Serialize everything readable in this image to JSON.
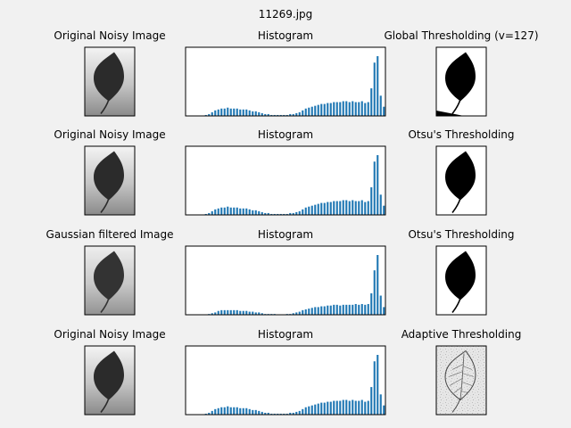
{
  "window": {
    "title": "11269.jpg"
  },
  "panels": [
    {
      "row": 0,
      "left_title": "Original Noisy Image",
      "middle_title": "Histogram",
      "right_title": "Global Thresholding (v=127)",
      "right_kind": "global"
    },
    {
      "row": 1,
      "left_title": "Original Noisy Image",
      "middle_title": "Histogram",
      "right_title": "Otsu's Thresholding",
      "right_kind": "otsu"
    },
    {
      "row": 2,
      "left_title": "Gaussian filtered Image",
      "middle_title": "Histogram",
      "right_title": "Otsu's Thresholding",
      "right_kind": "otsu"
    },
    {
      "row": 3,
      "left_title": "Original Noisy Image",
      "middle_title": "Histogram",
      "right_title": "Adaptive Thresholding",
      "right_kind": "adaptive"
    }
  ],
  "colors": {
    "figure_bg": "#f1f1f1",
    "axes_bg": "#ffffff",
    "bar": "#1f77b4",
    "leaf": "#2b2b2b",
    "binary_fg": "#000000"
  },
  "chart_data": [
    {
      "type": "bar",
      "title": "Histogram",
      "x": [
        26,
        30,
        34,
        38,
        42,
        46,
        50,
        54,
        58,
        62,
        66,
        70,
        74,
        78,
        82,
        86,
        90,
        94,
        98,
        102,
        106,
        110,
        114,
        118,
        122,
        126,
        130,
        134,
        138,
        142,
        146,
        150,
        154,
        158,
        162,
        166,
        170,
        174,
        178,
        182,
        186,
        190,
        194,
        198,
        202,
        206,
        210,
        214,
        218,
        222,
        226,
        230,
        234,
        238,
        242,
        246,
        250,
        254
      ],
      "values": [
        1,
        2,
        4,
        6,
        7,
        8,
        8,
        9,
        8,
        8,
        8,
        7,
        7,
        7,
        6,
        5,
        5,
        4,
        3,
        2,
        2,
        1,
        1,
        1,
        1,
        1,
        1,
        2,
        2,
        3,
        4,
        6,
        8,
        9,
        10,
        11,
        12,
        13,
        13,
        14,
        14,
        15,
        15,
        15,
        16,
        16,
        15,
        16,
        15,
        15,
        16,
        14,
        15,
        30,
        58,
        65,
        22,
        10
      ],
      "xlim": [
        0,
        256
      ]
    },
    {
      "type": "bar",
      "title": "Histogram",
      "x": [
        26,
        30,
        34,
        38,
        42,
        46,
        50,
        54,
        58,
        62,
        66,
        70,
        74,
        78,
        82,
        86,
        90,
        94,
        98,
        102,
        106,
        110,
        114,
        118,
        122,
        126,
        130,
        134,
        138,
        142,
        146,
        150,
        154,
        158,
        162,
        166,
        170,
        174,
        178,
        182,
        186,
        190,
        194,
        198,
        202,
        206,
        210,
        214,
        218,
        222,
        226,
        230,
        234,
        238,
        242,
        246,
        250,
        254
      ],
      "values": [
        1,
        2,
        4,
        6,
        7,
        8,
        8,
        9,
        8,
        8,
        8,
        7,
        7,
        7,
        6,
        5,
        5,
        4,
        3,
        2,
        2,
        1,
        1,
        1,
        1,
        1,
        1,
        2,
        2,
        3,
        4,
        6,
        8,
        9,
        10,
        11,
        12,
        13,
        13,
        14,
        14,
        15,
        15,
        15,
        16,
        16,
        15,
        16,
        15,
        15,
        16,
        14,
        15,
        30,
        58,
        65,
        22,
        10
      ],
      "xlim": [
        0,
        256
      ]
    },
    {
      "type": "bar",
      "title": "Histogram",
      "x": [
        26,
        30,
        34,
        38,
        42,
        46,
        50,
        54,
        58,
        62,
        66,
        70,
        74,
        78,
        82,
        86,
        90,
        94,
        98,
        102,
        106,
        110,
        114,
        118,
        122,
        126,
        130,
        134,
        138,
        142,
        146,
        150,
        154,
        158,
        162,
        166,
        170,
        174,
        178,
        182,
        186,
        190,
        194,
        198,
        202,
        206,
        210,
        214,
        218,
        222,
        226,
        230,
        234,
        238,
        242,
        246,
        250,
        254
      ],
      "values": [
        0,
        1,
        2,
        3,
        5,
        6,
        6,
        6,
        6,
        6,
        6,
        5,
        5,
        5,
        4,
        4,
        3,
        3,
        2,
        1,
        1,
        1,
        1,
        0,
        0,
        0,
        1,
        1,
        2,
        3,
        4,
        6,
        7,
        8,
        9,
        10,
        10,
        11,
        11,
        12,
        12,
        13,
        13,
        12,
        13,
        13,
        13,
        13,
        14,
        13,
        14,
        13,
        14,
        28,
        58,
        78,
        25,
        10
      ],
      "xlim": [
        0,
        256
      ]
    },
    {
      "type": "bar",
      "title": "Histogram",
      "x": [
        26,
        30,
        34,
        38,
        42,
        46,
        50,
        54,
        58,
        62,
        66,
        70,
        74,
        78,
        82,
        86,
        90,
        94,
        98,
        102,
        106,
        110,
        114,
        118,
        122,
        126,
        130,
        134,
        138,
        142,
        146,
        150,
        154,
        158,
        162,
        166,
        170,
        174,
        178,
        182,
        186,
        190,
        194,
        198,
        202,
        206,
        210,
        214,
        218,
        222,
        226,
        230,
        234,
        238,
        242,
        246,
        250,
        254
      ],
      "values": [
        1,
        2,
        4,
        6,
        7,
        8,
        8,
        9,
        8,
        8,
        8,
        7,
        7,
        7,
        6,
        5,
        5,
        4,
        3,
        2,
        2,
        1,
        1,
        1,
        1,
        1,
        1,
        2,
        2,
        3,
        4,
        6,
        8,
        9,
        10,
        11,
        12,
        13,
        13,
        14,
        14,
        15,
        15,
        15,
        16,
        16,
        15,
        16,
        15,
        15,
        16,
        14,
        15,
        30,
        58,
        65,
        22,
        10
      ],
      "xlim": [
        0,
        256
      ]
    }
  ]
}
